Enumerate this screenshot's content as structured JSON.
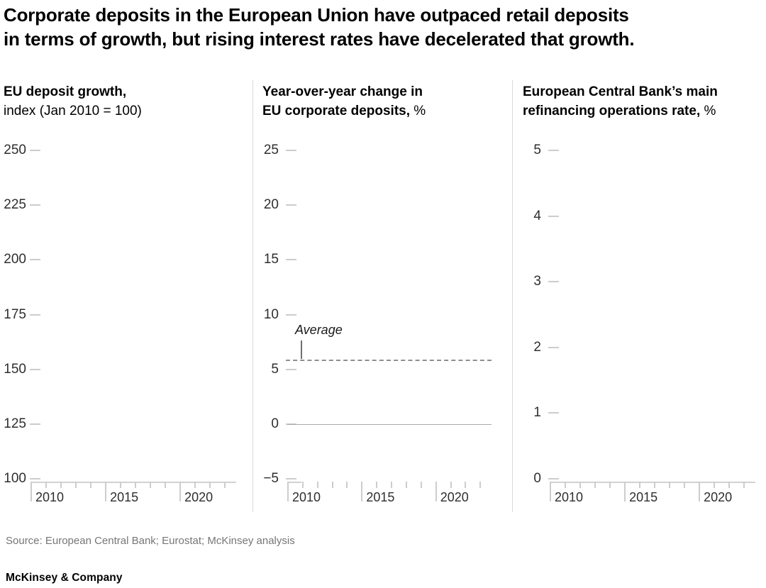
{
  "title_line1": "Corporate deposits in the European Union have outpaced retail deposits",
  "title_line2": "in terms of growth, but rising interest rates have decelerated that growth.",
  "source": "Source: European Central Bank; Eurostat; McKinsey analysis",
  "footer": "McKinsey & Company",
  "panels": [
    {
      "heading_line1_bold": "EU deposit growth,",
      "heading_line1_regular": "",
      "heading_line2_bold": "",
      "heading_line2_regular": "index (Jan 2010 = 100)"
    },
    {
      "heading_line1_bold": "Year-over-year change in",
      "heading_line1_regular": "",
      "heading_line2_bold": "EU corporate deposits,",
      "heading_line2_regular": " %"
    },
    {
      "heading_line1_bold": "European Central Bank’s main",
      "heading_line1_regular": "",
      "heading_line2_bold": "refinancing operations rate,",
      "heading_line2_regular": " %"
    }
  ],
  "chart_data": [
    {
      "type": "line",
      "title": "EU deposit growth, index (Jan 2010 = 100)",
      "ylabel": "index (Jan 2010 = 100)",
      "ylim": [
        100,
        250
      ],
      "yticks": [
        100,
        125,
        150,
        175,
        200,
        225,
        250
      ],
      "xlim": [
        2010,
        2023.8
      ],
      "xticks_major": [
        2010,
        2015,
        2020
      ],
      "xticks_all": [
        2010,
        2011,
        2012,
        2013,
        2014,
        2015,
        2016,
        2017,
        2018,
        2019,
        2020,
        2021,
        2022,
        2023
      ],
      "grid": false,
      "legend": false,
      "series": []
    },
    {
      "type": "line",
      "title": "Year-over-year change in EU corporate deposits, %",
      "ylabel": "%",
      "ylim": [
        -5,
        25
      ],
      "yticks": [
        -5,
        0,
        5,
        10,
        15,
        20,
        25
      ],
      "xlim": [
        2010,
        2023.8
      ],
      "xticks_major": [
        2010,
        2015,
        2020
      ],
      "xticks_all": [
        2010,
        2011,
        2012,
        2013,
        2014,
        2015,
        2016,
        2017,
        2018,
        2019,
        2020,
        2021,
        2022,
        2023
      ],
      "grid": false,
      "legend": false,
      "zero_line": true,
      "average_line": {
        "label": "Average",
        "value": 5.8
      },
      "series": []
    },
    {
      "type": "line",
      "title": "European Central Bank’s main refinancing operations rate, %",
      "ylabel": "%",
      "ylim": [
        0,
        5
      ],
      "yticks": [
        0,
        1,
        2,
        3,
        4,
        5
      ],
      "xlim": [
        2010,
        2023.8
      ],
      "xticks_major": [
        2010,
        2015,
        2020
      ],
      "xticks_all": [
        2010,
        2011,
        2012,
        2013,
        2014,
        2015,
        2016,
        2017,
        2018,
        2019,
        2020,
        2021,
        2022,
        2023
      ],
      "grid": false,
      "legend": false,
      "series": []
    }
  ],
  "colors": {
    "background": "#ffffff",
    "title_text": "#000000",
    "axis_label_text": "#2e2e2e",
    "tick_mark": "#cdcdcd",
    "axis_line": "#d2d2d2",
    "zero_line": "#a9a9a9",
    "average_line": "#8f8f8f",
    "divider": "#d8d8d8",
    "source_text": "#767676"
  }
}
